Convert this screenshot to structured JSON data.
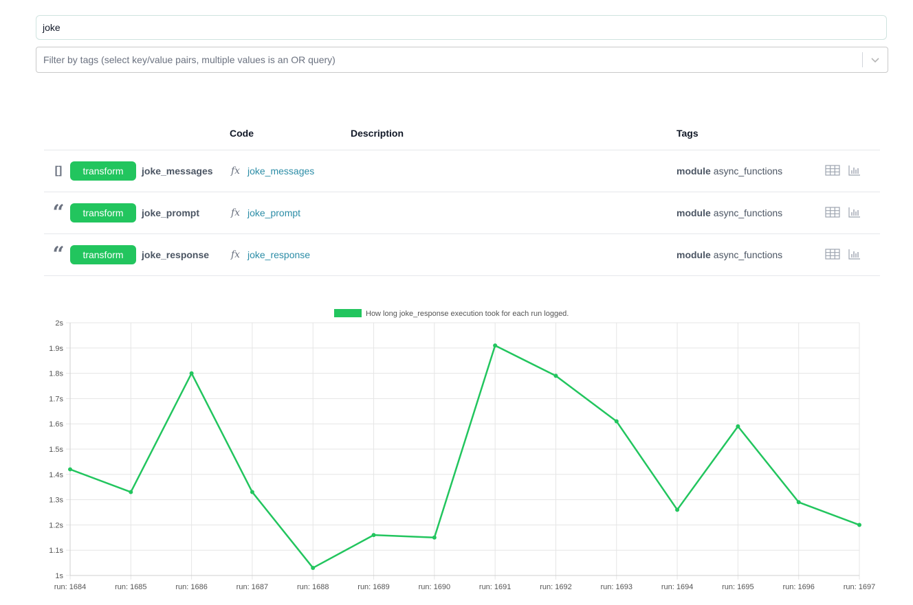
{
  "search": {
    "value": "joke"
  },
  "tag_filter": {
    "placeholder": "Filter by tags (select key/value pairs, multiple values is an OR query)"
  },
  "table": {
    "headers": {
      "code": "Code",
      "description": "Description",
      "tags": "Tags"
    },
    "rows": [
      {
        "type_icon": "list-brackets-icon",
        "type_symbol": "[]",
        "badge": "transform",
        "name": "joke_messages",
        "code": "joke_messages",
        "tag_key": "module",
        "tag_value": "async_functions"
      },
      {
        "type_icon": "quote-icon",
        "type_symbol": "“",
        "badge": "transform",
        "name": "joke_prompt",
        "code": "joke_prompt",
        "tag_key": "module",
        "tag_value": "async_functions"
      },
      {
        "type_icon": "quote-icon",
        "type_symbol": "“",
        "badge": "transform",
        "name": "joke_response",
        "code": "joke_response",
        "tag_key": "module",
        "tag_value": "async_functions"
      }
    ]
  },
  "colors": {
    "accent": "#22c55e",
    "link": "#2b8ca6"
  },
  "chart_data": {
    "type": "line",
    "legend": "How long joke_response execution took for each run logged.",
    "x": [
      "run: 1684",
      "run: 1685",
      "run: 1686",
      "run: 1687",
      "run: 1688",
      "run: 1689",
      "run: 1690",
      "run: 1691",
      "run: 1692",
      "run: 1693",
      "run: 1694",
      "run: 1695",
      "run: 1696",
      "run: 1697"
    ],
    "values": [
      1.42,
      1.33,
      1.8,
      1.33,
      1.03,
      1.16,
      1.15,
      1.91,
      1.79,
      1.61,
      1.26,
      1.59,
      1.29,
      1.2
    ],
    "yticks": [
      "2s",
      "1.9s",
      "1.8s",
      "1.7s",
      "1.6s",
      "1.5s",
      "1.4s",
      "1.3s",
      "1.2s",
      "1.1s",
      "1s"
    ],
    "ylim": [
      1,
      2
    ],
    "grid": true,
    "legend_position": "top-center"
  }
}
